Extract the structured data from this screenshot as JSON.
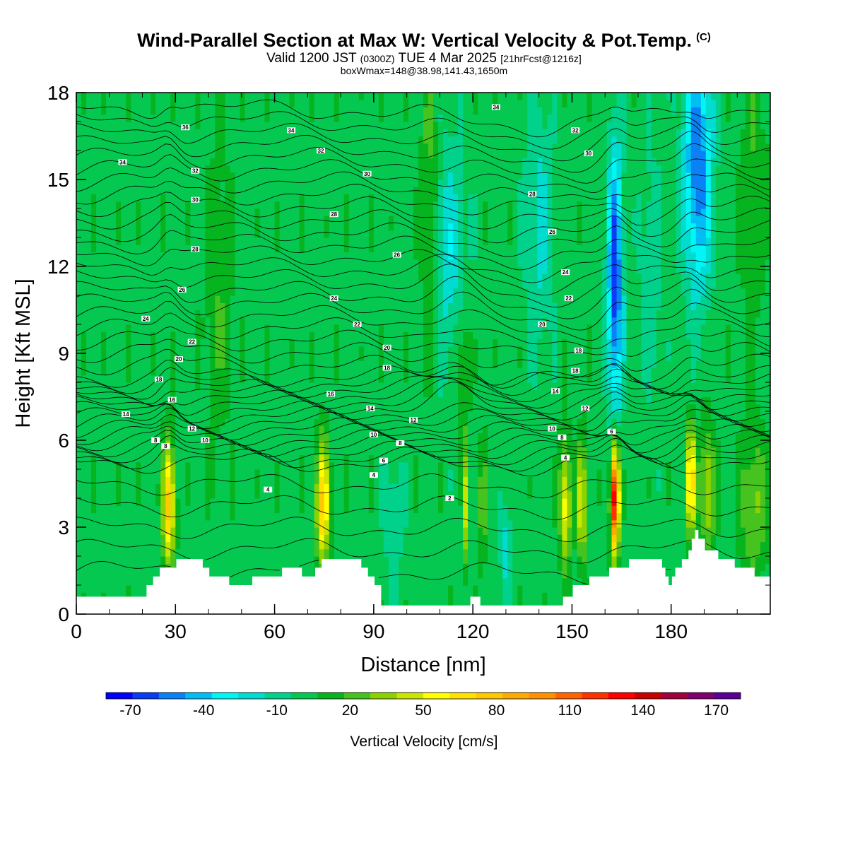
{
  "title": "Wind-Parallel Section at Max W: Vertical Velocity & Pot.Temp.",
  "copyright": "(C)",
  "subtitle_a": "Valid 1200 JST",
  "subtitle_b": "(0300Z)",
  "subtitle_c": "TUE 4 Mar 2025",
  "subtitle_d": "[21hrFcst@1216z]",
  "subtitle2": "boxWmax=148@38.98,141.43,1650m",
  "chart_data": {
    "type": "heatmap",
    "xlabel": "Distance [nm]",
    "ylabel": "Height [Kft MSL]",
    "xlim": [
      0,
      210
    ],
    "ylim": [
      0,
      18
    ],
    "x_ticks": [
      "0",
      "30",
      "60",
      "90",
      "120",
      "150",
      "180"
    ],
    "y_ticks": [
      "0",
      "3",
      "6",
      "9",
      "12",
      "15",
      "18"
    ],
    "colorbar": {
      "label": "Vertical Velocity [cm/s]",
      "tick_labels": [
        "-70",
        "-40",
        "-10",
        "20",
        "50",
        "80",
        "110",
        "140",
        "170"
      ],
      "colors": [
        "#0000ff",
        "#0a3cf5",
        "#0a82f5",
        "#00bdf5",
        "#00f5f5",
        "#00dcd2",
        "#00d28c",
        "#05c850",
        "#05b41e",
        "#46c31e",
        "#8cd200",
        "#c8e600",
        "#ffff00",
        "#ffe100",
        "#ffc800",
        "#ffaa00",
        "#ff9100",
        "#ff6400",
        "#ff3200",
        "#ff0000",
        "#c80000",
        "#a0003c",
        "#82006e",
        "#5a0096"
      ]
    },
    "theta_contour_labels": [
      {
        "x": 14,
        "y": 15.6,
        "text": "34"
      },
      {
        "x": 33,
        "y": 16.8,
        "text": "36"
      },
      {
        "x": 65,
        "y": 16.7,
        "text": "34"
      },
      {
        "x": 127,
        "y": 17.5,
        "text": "34"
      },
      {
        "x": 151,
        "y": 16.7,
        "text": "32"
      },
      {
        "x": 155,
        "y": 15.9,
        "text": "30"
      },
      {
        "x": 74,
        "y": 16.0,
        "text": "32"
      },
      {
        "x": 36,
        "y": 15.3,
        "text": "32"
      },
      {
        "x": 88,
        "y": 15.2,
        "text": "30"
      },
      {
        "x": 36,
        "y": 14.3,
        "text": "30"
      },
      {
        "x": 138,
        "y": 14.5,
        "text": "28"
      },
      {
        "x": 78,
        "y": 13.8,
        "text": "28"
      },
      {
        "x": 144,
        "y": 13.2,
        "text": "26"
      },
      {
        "x": 36,
        "y": 12.6,
        "text": "28"
      },
      {
        "x": 97,
        "y": 12.4,
        "text": "26"
      },
      {
        "x": 148,
        "y": 11.8,
        "text": "24"
      },
      {
        "x": 32,
        "y": 11.2,
        "text": "26"
      },
      {
        "x": 78,
        "y": 10.9,
        "text": "24"
      },
      {
        "x": 149,
        "y": 10.9,
        "text": "22"
      },
      {
        "x": 21,
        "y": 10.2,
        "text": "24"
      },
      {
        "x": 85,
        "y": 10.0,
        "text": "22"
      },
      {
        "x": 141,
        "y": 10.0,
        "text": "20"
      },
      {
        "x": 35,
        "y": 9.4,
        "text": "22"
      },
      {
        "x": 94,
        "y": 9.2,
        "text": "20"
      },
      {
        "x": 152,
        "y": 9.1,
        "text": "18"
      },
      {
        "x": 31,
        "y": 8.8,
        "text": "20"
      },
      {
        "x": 94,
        "y": 8.5,
        "text": "18"
      },
      {
        "x": 151,
        "y": 8.4,
        "text": "18"
      },
      {
        "x": 25,
        "y": 8.1,
        "text": "18"
      },
      {
        "x": 77,
        "y": 7.6,
        "text": "16"
      },
      {
        "x": 145,
        "y": 7.7,
        "text": "14"
      },
      {
        "x": 29,
        "y": 7.4,
        "text": "16"
      },
      {
        "x": 89,
        "y": 7.1,
        "text": "14"
      },
      {
        "x": 154,
        "y": 7.1,
        "text": "12"
      },
      {
        "x": 15,
        "y": 6.9,
        "text": "14"
      },
      {
        "x": 102,
        "y": 6.7,
        "text": "12"
      },
      {
        "x": 35,
        "y": 6.4,
        "text": "12"
      },
      {
        "x": 144,
        "y": 6.4,
        "text": "10"
      },
      {
        "x": 90,
        "y": 6.2,
        "text": "10"
      },
      {
        "x": 147,
        "y": 6.1,
        "text": "8"
      },
      {
        "x": 24,
        "y": 6.0,
        "text": "8"
      },
      {
        "x": 39,
        "y": 6.0,
        "text": "10"
      },
      {
        "x": 27,
        "y": 5.8,
        "text": "8"
      },
      {
        "x": 98,
        "y": 5.9,
        "text": "8"
      },
      {
        "x": 162,
        "y": 6.3,
        "text": "6"
      },
      {
        "x": 93,
        "y": 5.3,
        "text": "6"
      },
      {
        "x": 148,
        "y": 5.4,
        "text": "4"
      },
      {
        "x": 90,
        "y": 4.8,
        "text": "4"
      },
      {
        "x": 58,
        "y": 4.3,
        "text": "4"
      },
      {
        "x": 113,
        "y": 4.0,
        "text": "2"
      }
    ]
  }
}
